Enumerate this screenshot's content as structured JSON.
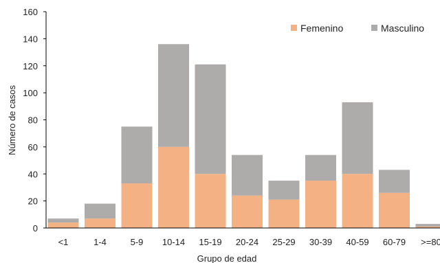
{
  "chart_data": {
    "type": "bar",
    "stacked": true,
    "categories": [
      "<1",
      "1-4",
      "5-9",
      "10-14",
      "15-19",
      "20-24",
      "25-29",
      "30-39",
      "40-59",
      "60-79",
      ">=80"
    ],
    "series": [
      {
        "name": "Femenino",
        "color": "#F4B183",
        "values": [
          4,
          7,
          33,
          60,
          40,
          24,
          21,
          35,
          40,
          26,
          1
        ]
      },
      {
        "name": "Masculino",
        "color": "#AEABAB",
        "values": [
          3,
          11,
          42,
          76,
          81,
          30,
          14,
          19,
          53,
          17,
          2
        ]
      }
    ],
    "xlabel": "Grupo de edad",
    "ylabel": "Número de casos",
    "ylim": [
      0,
      160
    ],
    "yticks": [
      0,
      20,
      40,
      60,
      80,
      100,
      120,
      140,
      160
    ],
    "grid": false,
    "legend_position": "top-right",
    "axis_color": "#000000"
  }
}
